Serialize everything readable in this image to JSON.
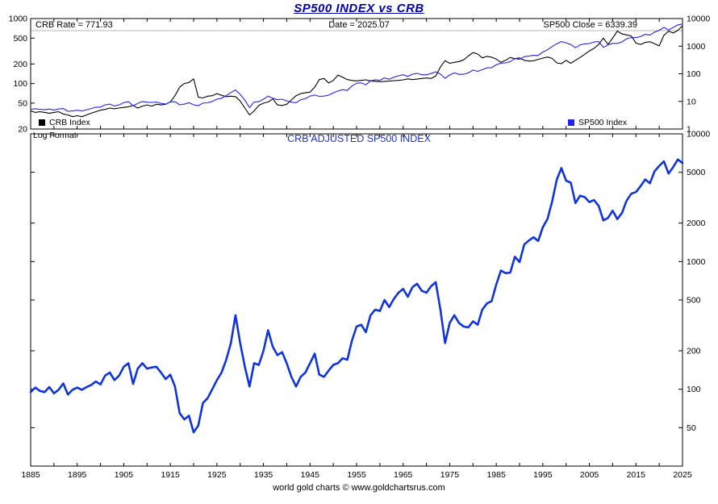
{
  "page": {
    "title": "SP500 INDEX vs CRB",
    "footer": "world gold charts © www.goldchartsrus.com"
  },
  "top_panel": {
    "annotations": {
      "crb_rate": "CRB Rate = 771.93",
      "date": "Date = 2025.07",
      "sp500_close": "SP500 Close = 6339.39"
    },
    "legend": {
      "crb": {
        "label": "CRB Index",
        "color": "#000000"
      },
      "sp500": {
        "label": "SP500 Index",
        "color": "#2222ee"
      }
    }
  },
  "bottom_panel": {
    "title": "CRB ADJUSTED SP500 INDEX",
    "corner_label": "Log Format"
  },
  "colors": {
    "title": "#0000b0",
    "bottom_title": "#2233cc",
    "crb_line": "#000000",
    "sp500_line": "#2222ee",
    "adjusted_line": "#1133dd",
    "axis": "#000000"
  },
  "chart_data": [
    {
      "type": "line",
      "title": "SP500 INDEX vs CRB",
      "x_min": 1885,
      "x_max": 2025,
      "x_minor_step": 5,
      "x_tick_labels": [
        1885,
        1895,
        1905,
        1915,
        1925,
        1935,
        1945,
        1955,
        1965,
        1975,
        1985,
        1995,
        2005,
        2015,
        2025
      ],
      "grid": false,
      "axes": {
        "left": {
          "range": [
            20,
            1000
          ],
          "ticks": [
            1000,
            500,
            200,
            100,
            50,
            20
          ]
        },
        "right": {
          "range": [
            1,
            10000
          ],
          "ticks": [
            10000,
            1000,
            100,
            10,
            1
          ]
        }
      },
      "series": [
        {
          "name": "CRB Index",
          "axis": "left",
          "color": "#000000",
          "width": 1.1,
          "start_year": 1885,
          "values": [
            38,
            36,
            37,
            36,
            35,
            36,
            37,
            34,
            33,
            31,
            32,
            31,
            33,
            35,
            37,
            39,
            40,
            42,
            41,
            42,
            43,
            44,
            46,
            42,
            45,
            47,
            45,
            48,
            47,
            48,
            52,
            65,
            88,
            100,
            104,
            118,
            62,
            60,
            64,
            65,
            70,
            66,
            63,
            64,
            63,
            54,
            42,
            33,
            38,
            46,
            50,
            52,
            58,
            47,
            46,
            48,
            56,
            65,
            70,
            72,
            74,
            88,
            115,
            120,
            102,
            112,
            135,
            125,
            115,
            112,
            110,
            112,
            114,
            110,
            108,
            107,
            108,
            109,
            111,
            112,
            114,
            118,
            115,
            117,
            120,
            122,
            120,
            130,
            180,
            225,
            205,
            212,
            218,
            232,
            265,
            300,
            285,
            248,
            262,
            255,
            238,
            212,
            228,
            252,
            242,
            248,
            228,
            222,
            224,
            236,
            246,
            256,
            244,
            208,
            202,
            228,
            205,
            228,
            252,
            282,
            318,
            348,
            400,
            500,
            400,
            500,
            640,
            580,
            560,
            540,
            420,
            400,
            430,
            440,
            410,
            380,
            550,
            640,
            600,
            660,
            771.93
          ]
        },
        {
          "name": "SP500 Index",
          "axis": "right",
          "color": "#2222ee",
          "width": 1.1,
          "start_year": 1885,
          "values": [
            5.2,
            5.4,
            5.2,
            5.0,
            5.3,
            4.9,
            5.3,
            5.5,
            4.4,
            4.5,
            4.8,
            4.5,
            5.0,
            5.5,
            6.2,
            6.2,
            7.5,
            8.0,
            6.8,
            7.5,
            9.0,
            9.8,
            7.0,
            8.5,
            10.0,
            9.3,
            9.2,
            9.5,
            8.5,
            8.0,
            9.5,
            9.8,
            7.5,
            8.0,
            9.0,
            7.5,
            7.0,
            8.7,
            8.9,
            10.0,
            12.0,
            13.0,
            16.0,
            21.0,
            26.0,
            18.0,
            11.0,
            6.0,
            9.5,
            9.8,
            12.0,
            15.5,
            13.0,
            11.5,
            12.0,
            10.5,
            9.3,
            9.0,
            11.5,
            12.5,
            15.5,
            17.0,
            15.2,
            15.5,
            16.8,
            20.4,
            23.8,
            26.6,
            24.8,
            36.0,
            45.5,
            46.7,
            40.0,
            55.2,
            59.9,
            58.1,
            71.6,
            63.1,
            75.0,
            84.8,
            92.4,
            80.3,
            96.5,
            103.9,
            92.1,
            92.2,
            102.1,
            118.1,
            97.6,
            68.6,
            90.2,
            107.5,
            95.1,
            96.1,
            107.9,
            135.8,
            122.6,
            140.6,
            164.9,
            167.2,
            211.3,
            242.2,
            247.1,
            277.7,
            353.4,
            330.2,
            417.1,
            435.7,
            466.5,
            459.3,
            615.9,
            740.7,
            970.4,
            1229.2,
            1469.3,
            1320.3,
            1148.1,
            879.8,
            1111.9,
            1211.9,
            1248.3,
            1418.3,
            1468.4,
            903.3,
            1115.1,
            1257.6,
            1257.6,
            1426.2,
            1848.4,
            2058.9,
            2043.9,
            2238.8,
            2673.6,
            2506.9,
            3230.8,
            3756.1,
            4766.2,
            3839.5,
            4769.8,
            5881.6,
            6339.39
          ]
        }
      ]
    },
    {
      "type": "line",
      "title": "CRB ADJUSTED SP500 INDEX",
      "x_min": 1885,
      "x_max": 2025,
      "grid": false,
      "axes": {
        "right": {
          "range": [
            25,
            10000
          ],
          "ticks": [
            10000,
            5000,
            2000,
            1000,
            500,
            200,
            100,
            50
          ]
        }
      },
      "series": [
        {
          "name": "CRB Adjusted SP500",
          "axis": "right",
          "color": "#1133dd",
          "width": 2.6,
          "start_year": 1885,
          "values": [
            95,
            103,
            97,
            95,
            104,
            93,
            99,
            111,
            91,
            99,
            103,
            99,
            104,
            108,
            115,
            109,
            128,
            135,
            118,
            128,
            150,
            160,
            110,
            145,
            160,
            145,
            148,
            150,
            135,
            120,
            130,
            105,
            65,
            58,
            62,
            46,
            52,
            78,
            85,
            100,
            118,
            135,
            170,
            230,
            380,
            230,
            150,
            105,
            160,
            155,
            200,
            290,
            215,
            185,
            195,
            160,
            125,
            105,
            125,
            135,
            160,
            190,
            130,
            125,
            140,
            155,
            160,
            175,
            170,
            240,
            310,
            320,
            280,
            380,
            420,
            410,
            500,
            440,
            510,
            570,
            610,
            530,
            630,
            670,
            590,
            570,
            640,
            690,
            420,
            230,
            330,
            380,
            330,
            310,
            305,
            340,
            320,
            420,
            470,
            490,
            660,
            850,
            810,
            820,
            1090,
            990,
            1360,
            1460,
            1550,
            1450,
            1860,
            2150,
            2950,
            4390,
            5400,
            4300,
            4150,
            2870,
            3280,
            3200,
            2920,
            3030,
            2730,
            2100,
            2200,
            2500,
            2150,
            2400,
            3000,
            3400,
            3500,
            3900,
            4400,
            4100,
            5100,
            5600,
            6100,
            4900,
            5500,
            6300,
            5903
          ]
        }
      ]
    }
  ]
}
